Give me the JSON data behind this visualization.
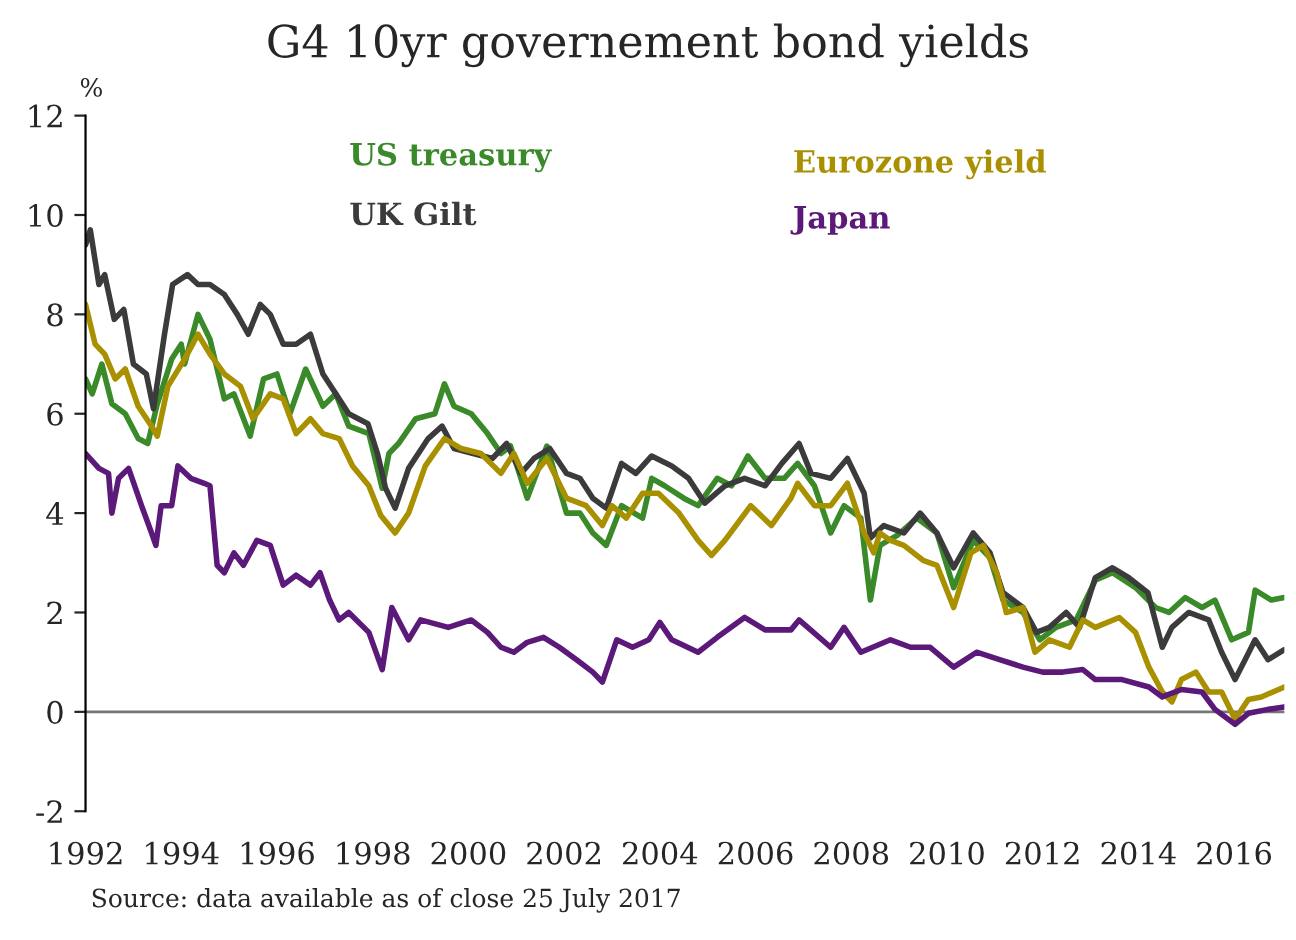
{
  "chart_data": {
    "type": "line",
    "title": "G4 10yr governement bond yields",
    "ylabel": "%",
    "xlim": [
      1992,
      2017.05
    ],
    "xticks": [
      1992,
      1994,
      1996,
      1998,
      2000,
      2002,
      2004,
      2006,
      2008,
      2010,
      2012,
      2014,
      2016
    ],
    "ylim": [
      -2,
      12
    ],
    "yticks": [
      -2,
      0,
      2,
      4,
      6,
      8,
      10,
      12
    ],
    "ref_lines": [
      {
        "axis": "y",
        "value": 0,
        "color": "#777777"
      }
    ],
    "legend": false,
    "annotations": [
      "Source: data available as of close 25 July 2017"
    ],
    "series": [
      {
        "name": "US treasury",
        "color": "#3a8a2a",
        "x": [
          1992,
          1992.14,
          1992.34,
          1992.55,
          1992.83,
          1993.1,
          1993.3,
          1993.5,
          1993.8,
          1994.0,
          1994.07,
          1994.35,
          1994.6,
          1994.9,
          1995.1,
          1995.44,
          1995.72,
          1996.0,
          1996.27,
          1996.6,
          1996.96,
          1997.23,
          1997.5,
          1997.92,
          1998.2,
          1998.34,
          1998.54,
          1998.9,
          1999.3,
          1999.5,
          1999.7,
          2000.06,
          2000.4,
          2000.68,
          2000.88,
          2001.23,
          2001.64,
          2002.05,
          2002.33,
          2002.6,
          2002.88,
          2003.2,
          2003.64,
          2003.83,
          2004.1,
          2004.5,
          2004.8,
          2005.2,
          2005.5,
          2005.84,
          2006.2,
          2006.6,
          2006.88,
          2007.23,
          2007.57,
          2007.85,
          2008.2,
          2008.4,
          2008.6,
          2008.96,
          2009.37,
          2009.79,
          2010.14,
          2010.55,
          2010.9,
          2011.17,
          2011.59,
          2011.94,
          2012.28,
          2012.7,
          2013.1,
          2013.46,
          2013.94,
          2014.36,
          2014.64,
          2014.98,
          2015.33,
          2015.6,
          2015.95,
          2016.3,
          2016.44,
          2016.78,
          2017.05
        ],
        "values": [
          6.7,
          6.4,
          7.0,
          6.2,
          6.0,
          5.5,
          5.4,
          6.2,
          7.1,
          7.4,
          7.0,
          8.0,
          7.5,
          6.3,
          6.4,
          5.55,
          6.7,
          6.8,
          6.0,
          6.9,
          6.15,
          6.4,
          5.75,
          5.6,
          4.5,
          5.2,
          5.4,
          5.9,
          6.0,
          6.6,
          6.15,
          6.0,
          5.6,
          5.2,
          5.35,
          4.3,
          5.35,
          4.0,
          4.0,
          3.6,
          3.35,
          4.15,
          3.9,
          4.7,
          4.55,
          4.3,
          4.15,
          4.7,
          4.55,
          5.15,
          4.7,
          4.7,
          5.0,
          4.55,
          3.6,
          4.15,
          3.9,
          2.25,
          3.35,
          3.55,
          3.9,
          3.6,
          2.5,
          3.45,
          3.1,
          2.25,
          2.0,
          1.45,
          1.7,
          1.85,
          2.65,
          2.8,
          2.5,
          2.1,
          2.0,
          2.3,
          2.1,
          2.25,
          1.45,
          1.6,
          2.45,
          2.25,
          2.3
        ]
      },
      {
        "name": "UK Gilt",
        "color": "#3b3b3b",
        "x": [
          1992,
          1992.1,
          1992.28,
          1992.4,
          1992.6,
          1992.8,
          1993.0,
          1993.27,
          1993.42,
          1993.65,
          1993.82,
          1994.13,
          1994.35,
          1994.6,
          1994.9,
          1995.17,
          1995.4,
          1995.65,
          1995.86,
          1996.13,
          1996.4,
          1996.7,
          1996.96,
          1997.23,
          1997.5,
          1997.9,
          1998.1,
          1998.27,
          1998.47,
          1998.75,
          1999.16,
          1999.45,
          1999.7,
          2000.1,
          2000.5,
          2000.8,
          2001.1,
          2001.37,
          2001.7,
          2002.05,
          2002.33,
          2002.6,
          2002.88,
          2003.2,
          2003.5,
          2003.83,
          2004.25,
          2004.6,
          2004.94,
          2005.36,
          2005.77,
          2006.2,
          2006.55,
          2006.91,
          2007.16,
          2007.57,
          2007.92,
          2008.27,
          2008.4,
          2008.68,
          2009.1,
          2009.44,
          2009.79,
          2010.14,
          2010.55,
          2010.9,
          2011.17,
          2011.59,
          2011.87,
          2012.14,
          2012.49,
          2012.77,
          2013.1,
          2013.46,
          2013.8,
          2014.2,
          2014.5,
          2014.7,
          2015.05,
          2015.47,
          2015.74,
          2016.02,
          2016.23,
          2016.44,
          2016.71,
          2017.05
        ],
        "values": [
          9.4,
          9.7,
          8.6,
          8.8,
          7.9,
          8.1,
          7.0,
          6.8,
          6.1,
          7.6,
          8.6,
          8.8,
          8.6,
          8.6,
          8.4,
          8.0,
          7.6,
          8.2,
          8.0,
          7.4,
          7.4,
          7.6,
          6.8,
          6.4,
          6.0,
          5.8,
          5.2,
          4.5,
          4.1,
          4.9,
          5.5,
          5.75,
          5.3,
          5.2,
          5.1,
          5.4,
          4.8,
          5.1,
          5.3,
          4.8,
          4.7,
          4.3,
          4.1,
          5.0,
          4.8,
          5.15,
          4.95,
          4.7,
          4.2,
          4.55,
          4.7,
          4.55,
          5.0,
          5.4,
          4.8,
          4.7,
          5.1,
          4.4,
          3.5,
          3.75,
          3.6,
          4.0,
          3.6,
          2.9,
          3.6,
          3.2,
          2.4,
          2.1,
          1.6,
          1.7,
          2.0,
          1.7,
          2.7,
          2.9,
          2.7,
          2.4,
          1.3,
          1.7,
          2.0,
          1.85,
          1.2,
          0.65,
          1.05,
          1.45,
          1.05,
          1.25
        ]
      },
      {
        "name": "Eurozone yield",
        "color": "#a89000",
        "x": [
          1992,
          1992.2,
          1992.4,
          1992.62,
          1992.83,
          1993.1,
          1993.38,
          1993.5,
          1993.72,
          1994.07,
          1994.35,
          1994.6,
          1994.9,
          1995.24,
          1995.5,
          1995.86,
          1996.13,
          1996.4,
          1996.7,
          1996.96,
          1997.3,
          1997.58,
          1997.92,
          1998.17,
          1998.47,
          1998.75,
          1999.1,
          1999.5,
          1999.85,
          2000.26,
          2000.68,
          2000.95,
          2001.23,
          2001.64,
          2002.05,
          2002.46,
          2002.8,
          2003.0,
          2003.3,
          2003.64,
          2003.97,
          2004.4,
          2004.8,
          2005.08,
          2005.36,
          2005.9,
          2006.33,
          2006.74,
          2006.88,
          2007.23,
          2007.57,
          2007.92,
          2008.27,
          2008.47,
          2008.6,
          2008.82,
          2009.1,
          2009.5,
          2009.79,
          2010.14,
          2010.5,
          2010.76,
          2011.04,
          2011.24,
          2011.59,
          2011.84,
          2012.14,
          2012.56,
          2012.84,
          2013.1,
          2013.6,
          2013.94,
          2014.22,
          2014.5,
          2014.7,
          2014.9,
          2015.2,
          2015.47,
          2015.74,
          2016.02,
          2016.3,
          2016.57,
          2017.05
        ],
        "values": [
          8.2,
          7.4,
          7.2,
          6.7,
          6.9,
          6.15,
          5.75,
          5.55,
          6.55,
          7.1,
          7.6,
          7.2,
          6.8,
          6.55,
          5.9,
          6.4,
          6.3,
          5.6,
          5.9,
          5.6,
          5.5,
          4.95,
          4.55,
          3.95,
          3.6,
          4.0,
          4.95,
          5.5,
          5.3,
          5.2,
          4.8,
          5.2,
          4.6,
          5.1,
          4.3,
          4.15,
          3.75,
          4.15,
          3.9,
          4.4,
          4.4,
          4.0,
          3.45,
          3.15,
          3.45,
          4.15,
          3.75,
          4.3,
          4.6,
          4.15,
          4.15,
          4.6,
          3.6,
          3.2,
          3.6,
          3.45,
          3.35,
          3.05,
          2.95,
          2.1,
          3.2,
          3.35,
          2.8,
          2.0,
          2.1,
          1.2,
          1.45,
          1.3,
          1.85,
          1.7,
          1.9,
          1.6,
          0.9,
          0.4,
          0.2,
          0.65,
          0.8,
          0.4,
          0.4,
          -0.15,
          0.25,
          0.3,
          0.5
        ]
      },
      {
        "name": "Japan",
        "color": "#5b1a7a",
        "x": [
          1992,
          1992.28,
          1992.48,
          1992.55,
          1992.69,
          1992.9,
          1993.17,
          1993.38,
          1993.47,
          1993.58,
          1993.8,
          1993.93,
          1994.2,
          1994.48,
          1994.6,
          1994.75,
          1994.9,
          1995.1,
          1995.3,
          1995.58,
          1995.86,
          1996.13,
          1996.4,
          1996.7,
          1996.9,
          1997.1,
          1997.3,
          1997.5,
          1997.92,
          1998.2,
          1998.4,
          1998.75,
          1999.0,
          1999.58,
          2000.06,
          2000.4,
          2000.68,
          2000.95,
          2001.23,
          2001.57,
          2001.9,
          2002.26,
          2002.6,
          2002.8,
          2003.1,
          2003.43,
          2003.77,
          2004.0,
          2004.25,
          2004.8,
          2005.2,
          2005.77,
          2006.2,
          2006.74,
          2006.91,
          2007.57,
          2007.85,
          2008.2,
          2008.82,
          2009.24,
          2009.65,
          2010.14,
          2010.62,
          2011.1,
          2011.59,
          2012.0,
          2012.42,
          2012.84,
          2013.1,
          2013.66,
          2014.22,
          2014.5,
          2014.9,
          2015.33,
          2015.6,
          2016.02,
          2016.3,
          2016.71,
          2017.05
        ],
        "values": [
          5.2,
          4.9,
          4.8,
          4.0,
          4.7,
          4.9,
          4.15,
          3.6,
          3.35,
          4.15,
          4.15,
          4.95,
          4.7,
          4.6,
          4.55,
          2.95,
          2.8,
          3.2,
          2.95,
          3.45,
          3.35,
          2.55,
          2.75,
          2.55,
          2.8,
          2.25,
          1.85,
          2.0,
          1.6,
          0.85,
          2.1,
          1.45,
          1.85,
          1.7,
          1.85,
          1.6,
          1.3,
          1.2,
          1.4,
          1.5,
          1.3,
          1.05,
          0.8,
          0.6,
          1.45,
          1.3,
          1.45,
          1.8,
          1.45,
          1.2,
          1.5,
          1.9,
          1.65,
          1.65,
          1.85,
          1.3,
          1.7,
          1.2,
          1.45,
          1.3,
          1.3,
          0.9,
          1.2,
          1.05,
          0.9,
          0.8,
          0.8,
          0.85,
          0.65,
          0.65,
          0.5,
          0.3,
          0.45,
          0.4,
          0.05,
          -0.25,
          -0.03,
          0.05,
          0.1
        ]
      }
    ]
  }
}
